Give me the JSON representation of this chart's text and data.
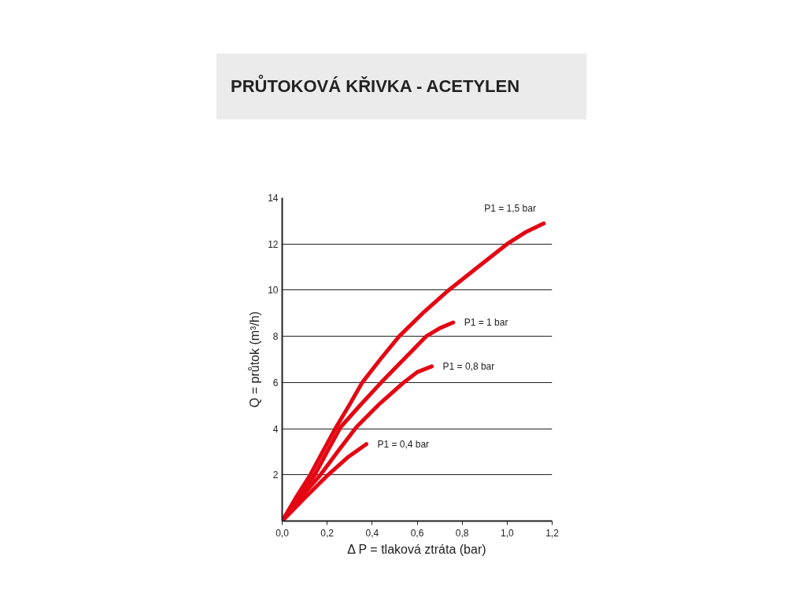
{
  "chart_data": {
    "type": "line",
    "title": "PRŮTOKOVÁ KŘIVKA - ACETYLEN",
    "xlabel": "Δ P = tlaková ztráta (bar)",
    "ylabel": "Q = průtok (m³/h)",
    "xlim": [
      0,
      1.2
    ],
    "ylim": [
      0,
      14
    ],
    "xticks": [
      {
        "value": 0,
        "label": "0,0"
      },
      {
        "value": 0.2,
        "label": "0,2"
      },
      {
        "value": 0.4,
        "label": "0,4"
      },
      {
        "value": 0.6,
        "label": "0,6"
      },
      {
        "value": 0.8,
        "label": "0,8"
      },
      {
        "value": 1.0,
        "label": "1,0"
      },
      {
        "value": 1.2,
        "label": "1,2"
      }
    ],
    "yticks": [
      {
        "value": 0,
        "label": null
      },
      2,
      4,
      6,
      8,
      10,
      12,
      14
    ],
    "grid": "y",
    "line_style": "solid",
    "series": [
      {
        "name": "P1 = 1,5 bar",
        "color": "#e30613",
        "x": [
          0,
          0.03,
          0.06,
          0.125,
          0.18,
          0.24,
          0.3,
          0.356,
          0.44,
          0.52,
          0.63,
          0.74,
          0.87,
          1.0,
          1.08,
          1.163
        ],
        "values": [
          0,
          0.5,
          1.0,
          2.0,
          3.0,
          4.07,
          5.05,
          6.0,
          7.05,
          8.0,
          9.05,
          10.0,
          11.0,
          12.0,
          12.5,
          12.89
        ]
      },
      {
        "name": "P1 = 1 bar",
        "color": "#e30613",
        "x": [
          0,
          0.07,
          0.145,
          0.2,
          0.26,
          0.35,
          0.44,
          0.54,
          0.64,
          0.7,
          0.76
        ],
        "values": [
          0,
          1.0,
          2.0,
          3.0,
          4.07,
          5.05,
          6.0,
          7.0,
          8.0,
          8.35,
          8.6
        ]
      },
      {
        "name": "P1 = 0,8 bar",
        "color": "#e30613",
        "x": [
          0,
          0.08,
          0.17,
          0.25,
          0.33,
          0.43,
          0.54,
          0.6,
          0.665
        ],
        "values": [
          0,
          1.0,
          2.0,
          3.05,
          4.07,
          5.05,
          6.0,
          6.45,
          6.7
        ]
      },
      {
        "name": "P1 = 0,4 bar",
        "color": "#e30613",
        "x": [
          0,
          0.1,
          0.204,
          0.29,
          0.374
        ],
        "values": [
          0,
          1.0,
          2.0,
          2.75,
          3.33
        ]
      }
    ]
  }
}
